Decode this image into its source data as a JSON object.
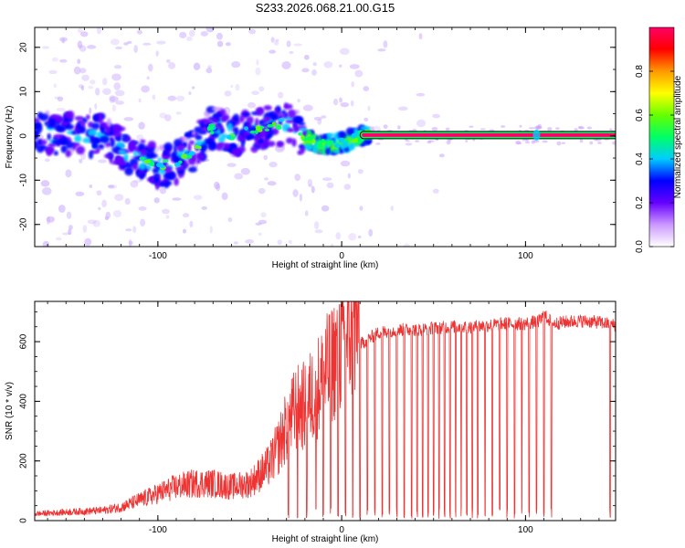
{
  "title": "S233.2026.068.21.00.G15",
  "chart_data": [
    {
      "type": "heatmap",
      "name": "spectrogram",
      "xlabel": "Height of straight line (km)",
      "ylabel": "Frequency (Hz)",
      "xlim": [
        -167,
        149
      ],
      "ylim": [
        -25,
        24.5
      ],
      "xticks": [
        -100,
        0,
        100
      ],
      "xtick_labels": [
        "-100",
        "0",
        "100"
      ],
      "yticks": [
        -20,
        -10,
        0,
        10,
        20
      ],
      "ytick_labels": [
        "-20",
        "-10",
        "0",
        "10",
        "20"
      ],
      "colorbar": {
        "label": "Normalized spectral amplitude",
        "range": [
          0,
          1
        ],
        "ticks": [
          0.0,
          0.2,
          0.4,
          0.6,
          0.8
        ],
        "tick_labels": [
          "0.0",
          "0.2",
          "0.4",
          "0.6",
          "0.8"
        ],
        "colors": [
          "#ffffff",
          "#cc99ff",
          "#6600ff",
          "#0000ff",
          "#00ccff",
          "#00ff66",
          "#66ff00",
          "#ffff00",
          "#ff9900",
          "#ff0000",
          "#ff0066"
        ]
      },
      "ridge": [
        {
          "x": -167,
          "f": 0.5
        },
        {
          "x": -150,
          "f": 0.5
        },
        {
          "x": -130,
          "f": 0
        },
        {
          "x": -115,
          "f": -4
        },
        {
          "x": -100,
          "f": -7
        },
        {
          "x": -90,
          "f": -6
        },
        {
          "x": -80,
          "f": -3
        },
        {
          "x": -70,
          "f": 2
        },
        {
          "x": -60,
          "f": 0
        },
        {
          "x": -50,
          "f": 1
        },
        {
          "x": -40,
          "f": 2
        },
        {
          "x": -30,
          "f": 3
        },
        {
          "x": -20,
          "f": -0.5
        },
        {
          "x": -10,
          "f": -2
        },
        {
          "x": 0,
          "f": -1.5
        },
        {
          "x": 10,
          "f": 0
        },
        {
          "x": 20,
          "f": 0.2
        },
        {
          "x": 149,
          "f": 0.2
        }
      ],
      "tone": {
        "x_start": 12,
        "x_end": 149,
        "f": 0.2,
        "amplitude": 1.0
      }
    },
    {
      "type": "line",
      "name": "snr",
      "xlabel": "Height of straight line (km)",
      "ylabel": "SNR (10 * v/v)",
      "xlim": [
        -167,
        149
      ],
      "ylim": [
        0,
        735
      ],
      "xticks": [
        -100,
        0,
        100
      ],
      "xtick_labels": [
        "-100",
        "0",
        "100"
      ],
      "yticks": [
        0,
        200,
        400,
        600
      ],
      "ytick_labels": [
        "0",
        "200",
        "400",
        "600"
      ],
      "color": "#ee3333",
      "x": [
        -167,
        -150,
        -130,
        -120,
        -110,
        -100,
        -90,
        -80,
        -70,
        -60,
        -50,
        -40,
        -35,
        -30,
        -25,
        -20,
        -15,
        -10,
        -5,
        0,
        5,
        10,
        15,
        20,
        30,
        40,
        50,
        60,
        70,
        80,
        90,
        100,
        108,
        110,
        115,
        120,
        130,
        140,
        149
      ],
      "y": [
        20,
        25,
        30,
        40,
        60,
        80,
        100,
        110,
        110,
        100,
        110,
        160,
        210,
        280,
        330,
        340,
        380,
        420,
        470,
        520,
        560,
        590,
        610,
        630,
        640,
        640,
        645,
        650,
        650,
        655,
        660,
        660,
        670,
        690,
        660,
        665,
        670,
        665,
        655
      ],
      "dropouts_x": [
        -29,
        -24,
        -19,
        -14,
        -10,
        -6,
        -2,
        2,
        6,
        10,
        14,
        18,
        22,
        26,
        30,
        34,
        38,
        41,
        44,
        47,
        50,
        53,
        56,
        59,
        62,
        65,
        68,
        71,
        74,
        78,
        82,
        86,
        90,
        94,
        98,
        102,
        106,
        110,
        114,
        146
      ]
    }
  ]
}
